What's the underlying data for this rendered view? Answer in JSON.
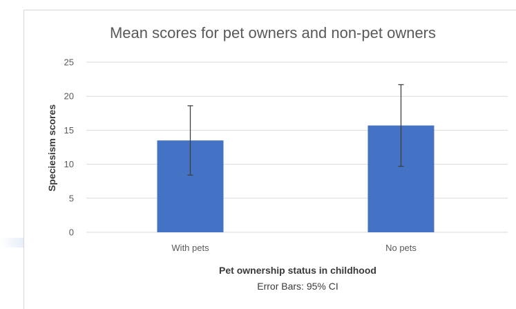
{
  "chart_data": {
    "type": "bar",
    "title": "Mean scores for pet owners and non-pet owners",
    "xlabel": "Pet ownership status in childhood",
    "ylabel": "Speciesism scores",
    "subtitle": "Error Bars: 95% CI",
    "categories": [
      "With pets",
      "No pets"
    ],
    "values": [
      13.5,
      15.7
    ],
    "error_low": [
      8.4,
      9.7
    ],
    "error_high": [
      18.6,
      21.7
    ],
    "ylim": [
      0,
      25
    ],
    "yticks": [
      "0",
      "5",
      "10",
      "15",
      "20",
      "25"
    ],
    "grid": true,
    "bar_color": "#4472c4",
    "gridline_color": "#d9d9d9",
    "error_bar_color": "#404040"
  }
}
